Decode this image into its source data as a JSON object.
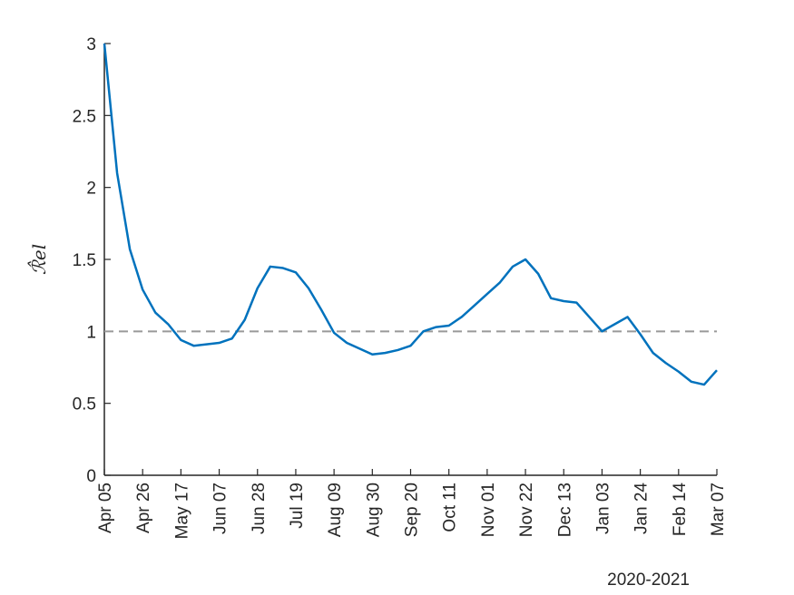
{
  "chart_data": {
    "type": "line",
    "ylabel": "ℛ̂el",
    "xlabel": "2020-2021",
    "x": [
      "Apr 05",
      "Apr 12",
      "Apr 19",
      "Apr 26",
      "May 03",
      "May 10",
      "May 17",
      "May 24",
      "May 31",
      "Jun 07",
      "Jun 14",
      "Jun 21",
      "Jun 28",
      "Jul 05",
      "Jul 12",
      "Jul 19",
      "Jul 26",
      "Aug 02",
      "Aug 09",
      "Aug 16",
      "Aug 23",
      "Aug 30",
      "Sep 06",
      "Sep 13",
      "Sep 20",
      "Sep 27",
      "Oct 04",
      "Oct 11",
      "Oct 18",
      "Oct 25",
      "Nov 01",
      "Nov 08",
      "Nov 15",
      "Nov 22",
      "Nov 29",
      "Dec 06",
      "Dec 13",
      "Dec 20",
      "Dec 27",
      "Jan 03",
      "Jan 10",
      "Jan 17",
      "Jan 24",
      "Jan 31",
      "Feb 07",
      "Feb 14",
      "Feb 21",
      "Feb 28",
      "Mar 07"
    ],
    "series": [
      {
        "color": "#0072bd",
        "values": [
          3.0,
          2.1,
          1.57,
          1.29,
          1.13,
          1.05,
          0.94,
          0.9,
          0.91,
          0.92,
          0.95,
          1.08,
          1.3,
          1.45,
          1.44,
          1.41,
          1.3,
          1.15,
          0.99,
          0.92,
          0.88,
          0.84,
          0.85,
          0.87,
          0.9,
          1.0,
          1.03,
          1.04,
          1.1,
          1.18,
          1.26,
          1.34,
          1.45,
          1.5,
          1.4,
          1.23,
          1.21,
          1.2,
          1.1,
          1.0,
          1.05,
          1.1,
          0.98,
          0.85,
          0.78,
          0.72,
          0.65,
          0.63,
          0.73
        ]
      }
    ],
    "xticks": [
      "Apr 05",
      "Apr 26",
      "May 17",
      "Jun 07",
      "Jun 28",
      "Jul 19",
      "Aug 09",
      "Aug 30",
      "Sep 20",
      "Oct 11",
      "Nov 01",
      "Nov 22",
      "Dec 13",
      "Jan 03",
      "Jan 24",
      "Feb 14",
      "Mar 07"
    ],
    "ylim": [
      0,
      3
    ],
    "yticks": [
      0,
      0.5,
      1,
      1.5,
      2,
      2.5,
      3
    ],
    "reference_line": {
      "value": 1,
      "color": "#999999"
    }
  }
}
